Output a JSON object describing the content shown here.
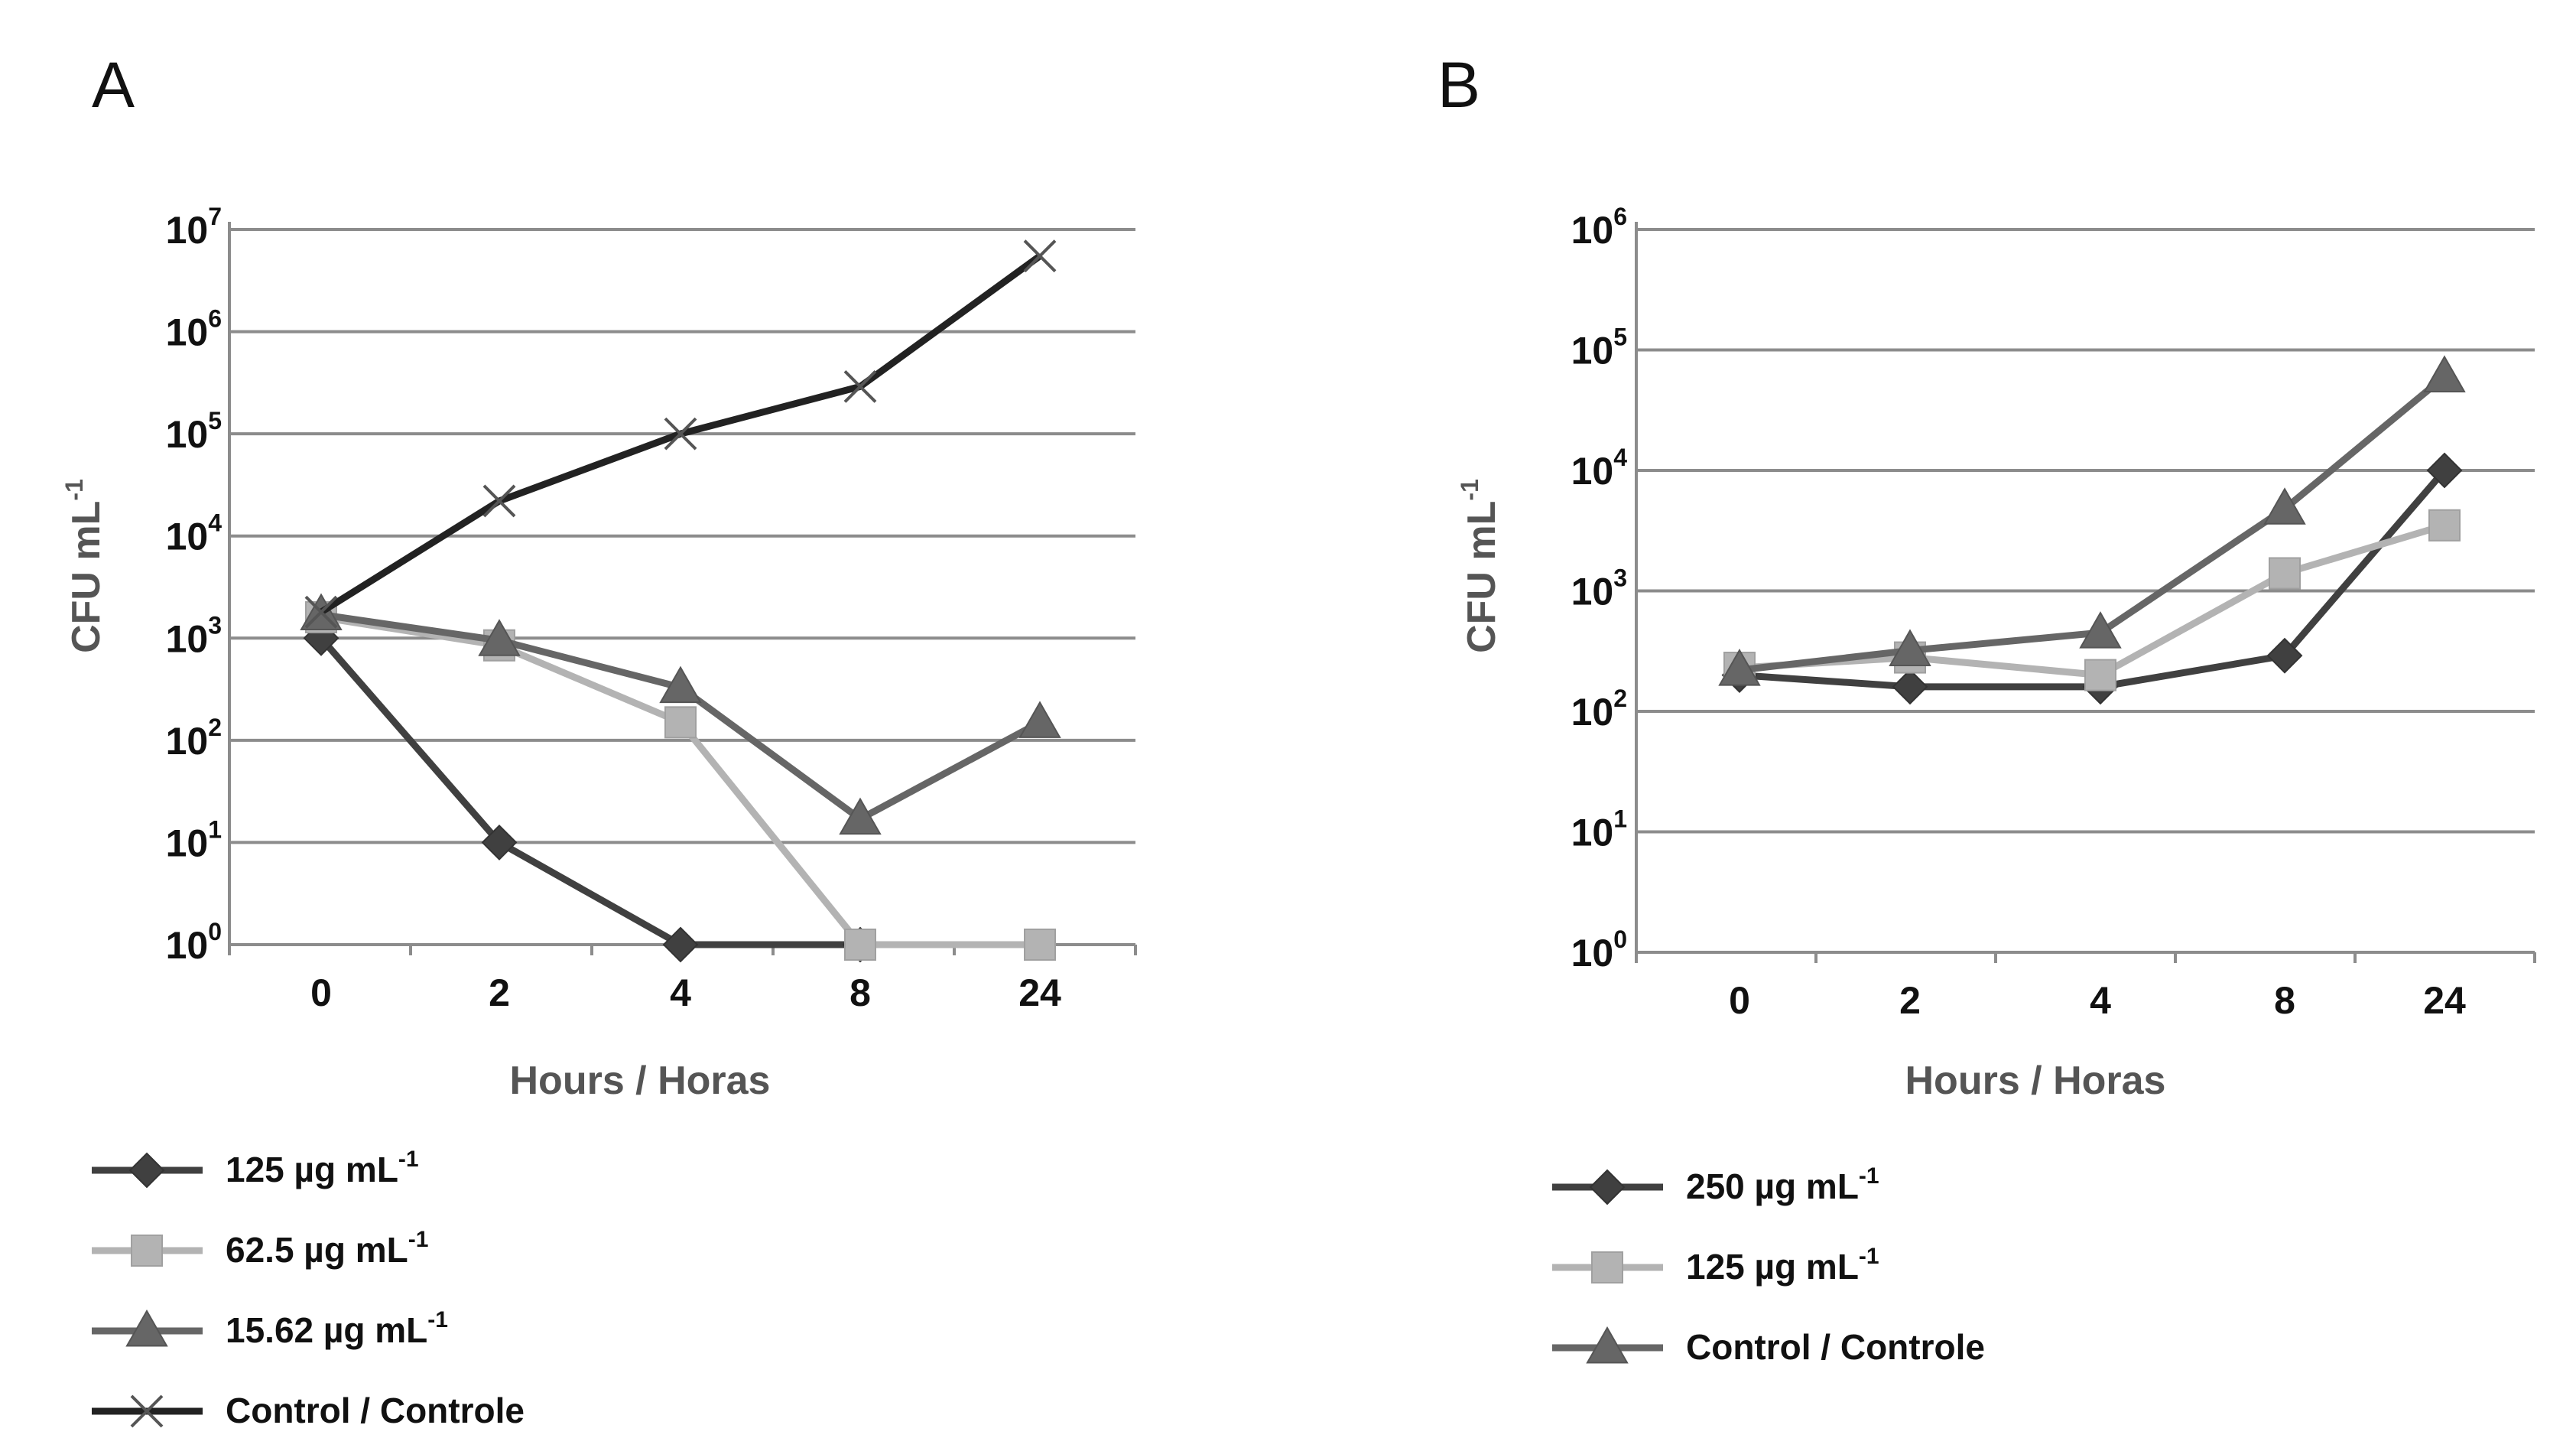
{
  "chart_data": [
    {
      "panel": "A",
      "type": "line",
      "title": "",
      "xlabel": "Hours / Horas",
      "ylabel": "CFU mL",
      "ylabel_sup": "-1",
      "yscale": "log",
      "ylim": [
        1,
        10000000
      ],
      "y_ticks": [
        {
          "base": "10",
          "exp": "0"
        },
        {
          "base": "10",
          "exp": "1"
        },
        {
          "base": "10",
          "exp": "2"
        },
        {
          "base": "10",
          "exp": "3"
        },
        {
          "base": "10",
          "exp": "4"
        },
        {
          "base": "10",
          "exp": "5"
        },
        {
          "base": "10",
          "exp": "6"
        },
        {
          "base": "10",
          "exp": "7"
        }
      ],
      "categories": [
        "0",
        "2",
        "4",
        "8",
        "24"
      ],
      "grid": true,
      "legend_position": "bottom-left",
      "series": [
        {
          "name": "125 µg mL",
          "name_sup": "-1",
          "marker": "diamond",
          "color": "#404040",
          "values": [
            1000,
            10,
            1,
            1,
            null
          ]
        },
        {
          "name": "62.5 µg mL",
          "name_sup": "-1",
          "marker": "square",
          "color": "#b3b3b3",
          "values": [
            1600,
            850,
            150,
            1,
            1
          ]
        },
        {
          "name": "15.62 µg mL",
          "name_sup": "-1",
          "marker": "triangle",
          "color": "#666666",
          "values": [
            1700,
            950,
            330,
            17,
            150
          ]
        },
        {
          "name": "Control / Controle",
          "name_sup": "",
          "marker": "x",
          "color": "#222222",
          "values": [
            1800,
            22000,
            100000,
            290000,
            5500000
          ]
        }
      ]
    },
    {
      "panel": "B",
      "type": "line",
      "title": "",
      "xlabel": "Hours / Horas",
      "ylabel": "CFU mL",
      "ylabel_sup": "-1",
      "yscale": "log",
      "ylim": [
        1,
        1000000
      ],
      "y_ticks": [
        {
          "base": "10",
          "exp": "0"
        },
        {
          "base": "10",
          "exp": "1"
        },
        {
          "base": "10",
          "exp": "2"
        },
        {
          "base": "10",
          "exp": "3"
        },
        {
          "base": "10",
          "exp": "4"
        },
        {
          "base": "10",
          "exp": "5"
        },
        {
          "base": "10",
          "exp": "6"
        }
      ],
      "categories": [
        "0",
        "2",
        "4",
        "8",
        "24"
      ],
      "grid": true,
      "legend_position": "bottom-left",
      "series": [
        {
          "name": "250 µg mL",
          "name_sup": "-1",
          "marker": "diamond",
          "color": "#404040",
          "values": [
            200,
            160,
            160,
            290,
            10000
          ]
        },
        {
          "name": "125 µg mL",
          "name_sup": "-1",
          "marker": "square",
          "color": "#b3b3b3",
          "values": [
            230,
            280,
            200,
            1400,
            3500
          ]
        },
        {
          "name": "Control / Controle",
          "name_sup": "",
          "marker": "triangle",
          "color": "#666666",
          "values": [
            220,
            320,
            450,
            4800,
            60000
          ]
        }
      ]
    }
  ]
}
